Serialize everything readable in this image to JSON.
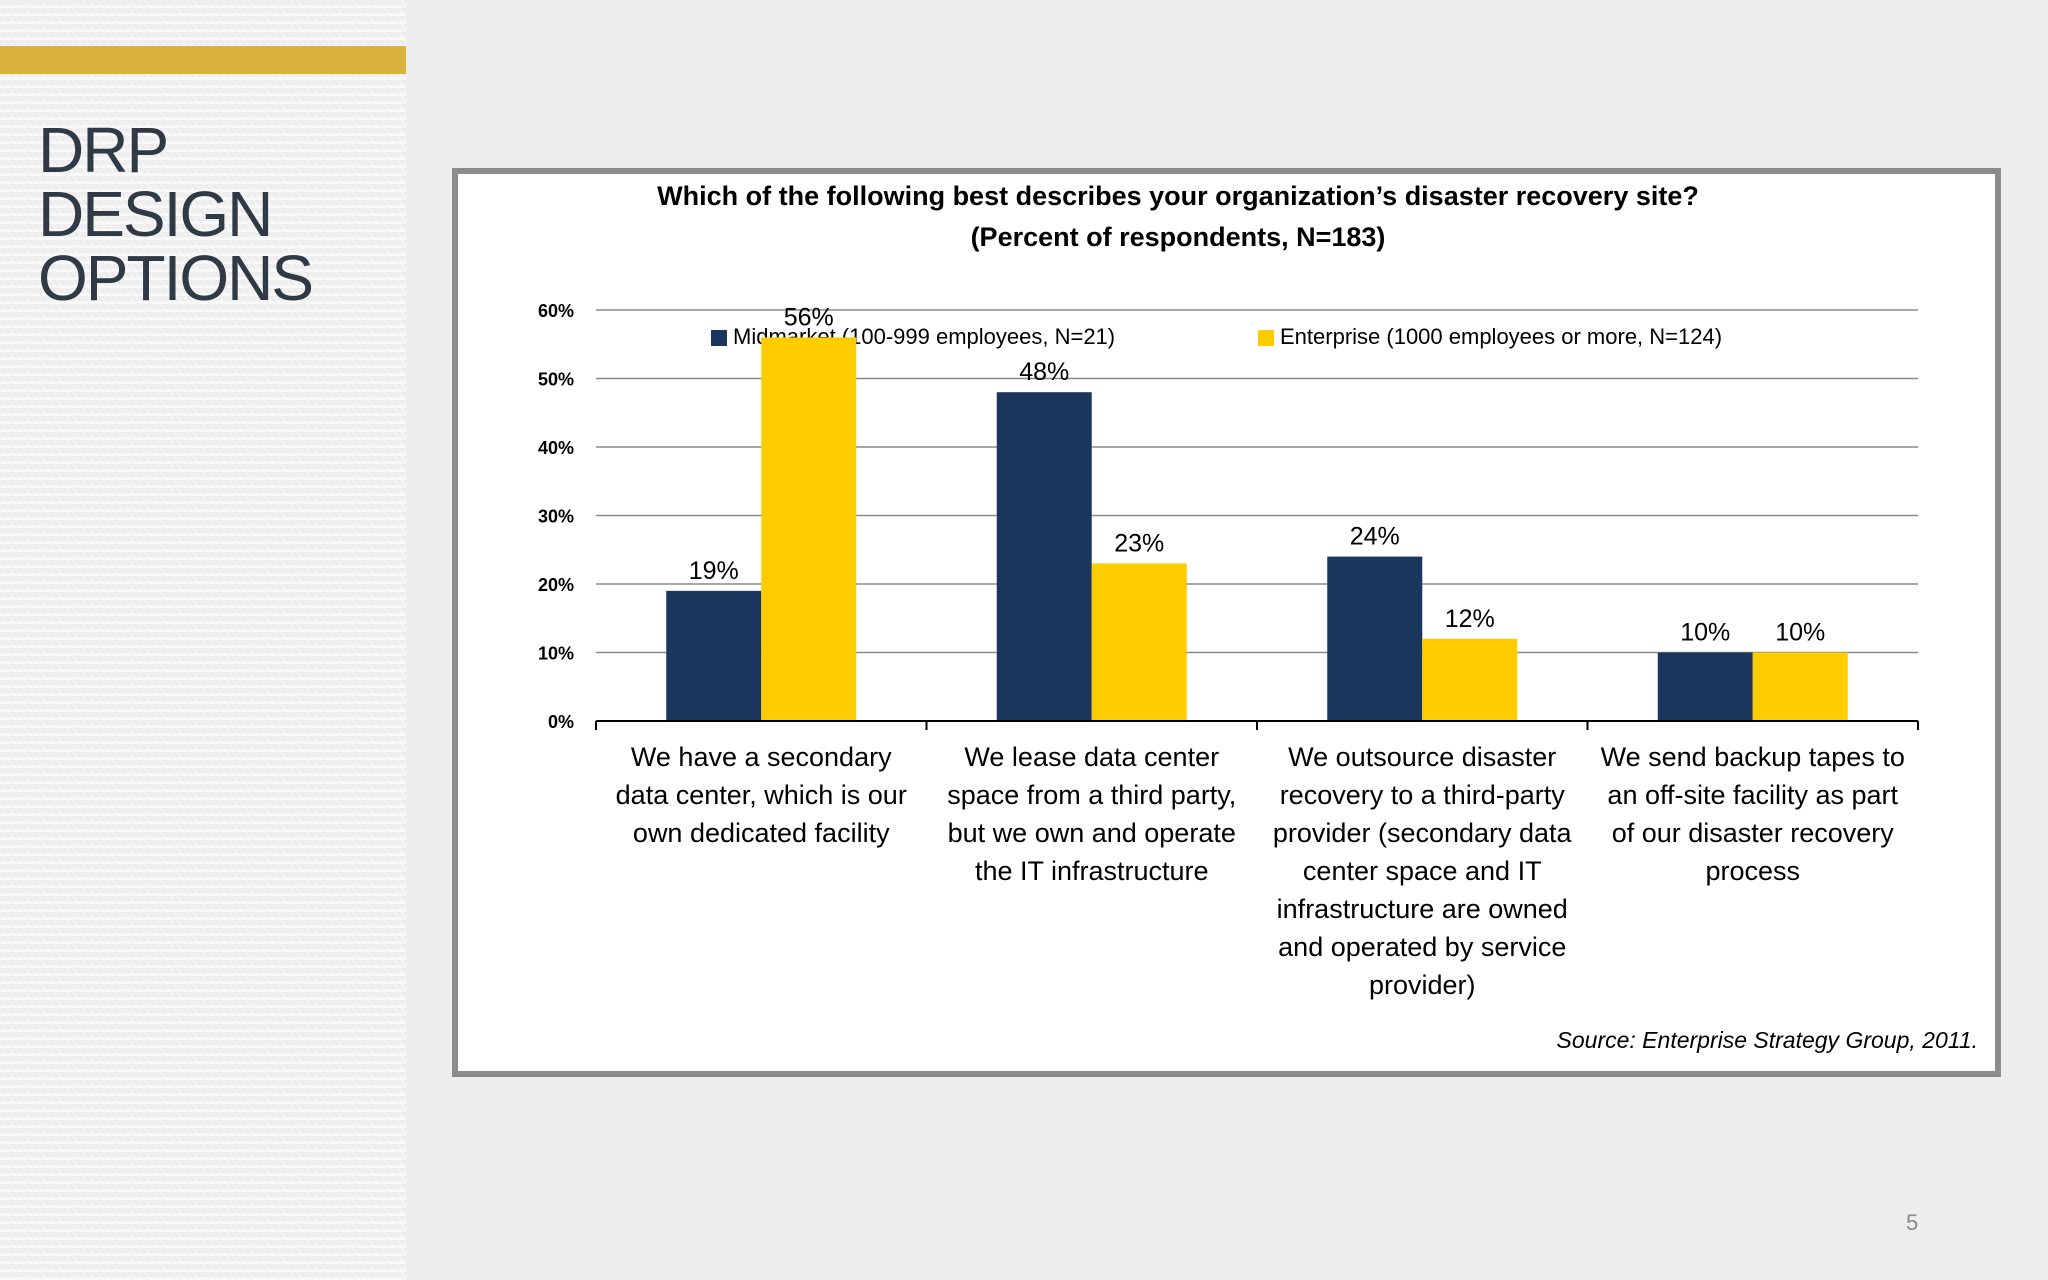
{
  "slide": {
    "title_lines": [
      "DRP",
      "DESIGN",
      "OPTIONS"
    ],
    "page_number": "5",
    "accent_color": "#d9b23e"
  },
  "chart_data": {
    "type": "bar",
    "title": "Which of the following best describes your organization’s disaster recovery site?",
    "subtitle": "(Percent of respondents, N=183)",
    "categories": [
      [
        "We have a secondary",
        "data center, which is our",
        "own dedicated facility"
      ],
      [
        "We lease data center",
        "space from a third party,",
        "but we own and operate",
        "the IT infrastructure"
      ],
      [
        "We outsource disaster",
        "recovery to a third-party",
        "provider (secondary data",
        "center space and IT",
        "infrastructure are owned",
        "and operated by service",
        "provider)"
      ],
      [
        "We send backup tapes to",
        "an off-site facility as part",
        "of our disaster recovery",
        "process"
      ]
    ],
    "series": [
      {
        "name": "Midmarket (100-999 employees, N=21)",
        "color": "#1b365d",
        "values": [
          19,
          48,
          24,
          10
        ],
        "labels": [
          "19%",
          "48%",
          "24%",
          "10%"
        ]
      },
      {
        "name": "Enterprise (1000 employees or more, N=124)",
        "color": "#ffcc00",
        "values": [
          56,
          23,
          12,
          10
        ],
        "labels": [
          "56%",
          "23%",
          "12%",
          "10%"
        ]
      }
    ],
    "yticks": [
      0,
      10,
      20,
      30,
      40,
      50,
      60
    ],
    "ytick_labels": [
      "0%",
      "10%",
      "20%",
      "30%",
      "40%",
      "50%",
      "60%"
    ],
    "ylim": [
      0,
      60
    ],
    "grid": true,
    "legend_position": "top",
    "source": "Source: Enterprise Strategy Group, 2011."
  }
}
